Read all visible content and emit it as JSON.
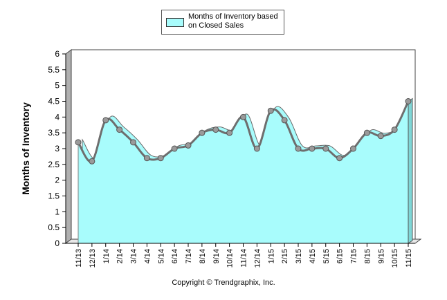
{
  "chart_data": {
    "type": "area",
    "legend_position": "top",
    "series": [
      {
        "name": "Months of Inventory based on Closed Sales",
        "values": [
          3.2,
          2.6,
          3.9,
          3.6,
          3.2,
          2.7,
          2.7,
          3.0,
          3.1,
          3.5,
          3.6,
          3.5,
          4.0,
          3.0,
          4.2,
          3.9,
          3.0,
          3.0,
          3.0,
          2.7,
          3.0,
          3.5,
          3.4,
          3.6,
          4.5
        ]
      }
    ],
    "categories": [
      "11/13",
      "12/13",
      "1/14",
      "2/14",
      "3/14",
      "4/14",
      "5/14",
      "6/14",
      "7/14",
      "8/14",
      "9/14",
      "10/14",
      "11/14",
      "12/14",
      "1/15",
      "2/15",
      "3/15",
      "4/15",
      "5/15",
      "6/15",
      "7/15",
      "8/15",
      "9/15",
      "10/15",
      "11/15"
    ],
    "ylabel": "Months of Inventory",
    "ylim": [
      0,
      6
    ],
    "yticks": [
      "0",
      "0.5",
      "1",
      "1.5",
      "2",
      "2.5",
      "3",
      "3.5",
      "4",
      "4.5",
      "5",
      "5.5",
      "6"
    ],
    "grid": false,
    "colors": {
      "fill": "#a8fcfc",
      "line": "#6e6e6e",
      "marker": "#9a9a9a"
    }
  },
  "footer": "Copyright © Trendgraphix, Inc."
}
